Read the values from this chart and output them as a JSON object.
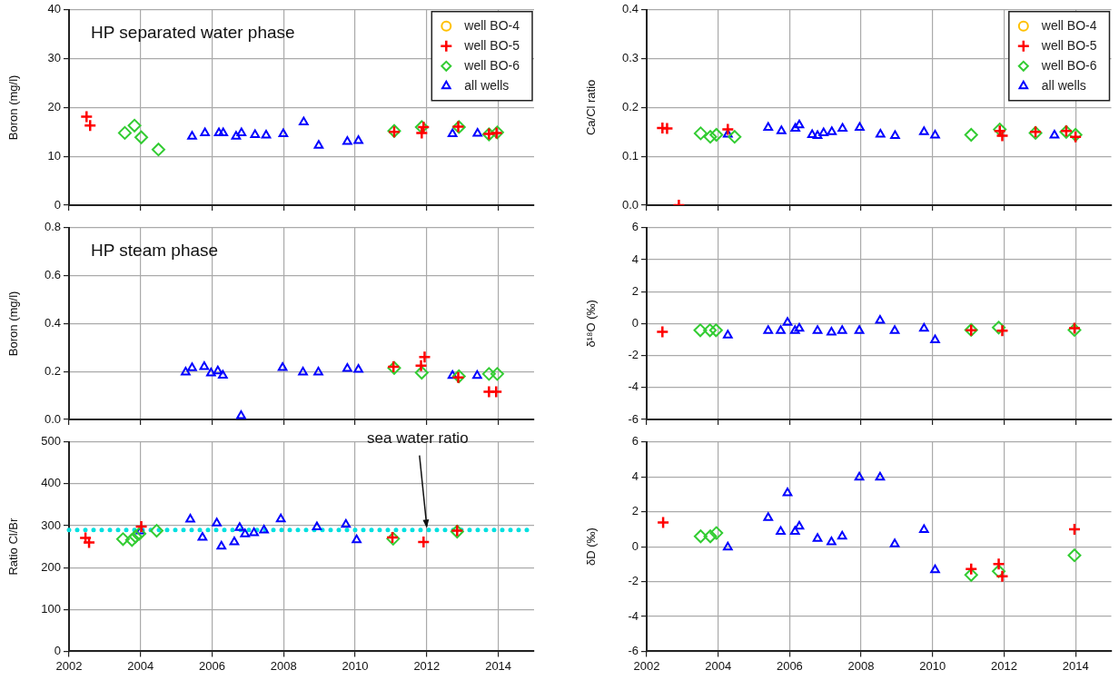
{
  "chart_data": [
    {
      "type": "scatter",
      "title": "HP separated water phase",
      "ylabel": "Boron (mg/l)",
      "xlim": [
        2002,
        2015
      ],
      "xticks": [
        2002,
        2004,
        2006,
        2008,
        2010,
        2012,
        2014
      ],
      "ylim": [
        0,
        40
      ],
      "yticks": [
        0,
        10,
        20,
        30,
        40
      ],
      "grid": true,
      "legend": "top right",
      "tick_labels": "y",
      "series": [
        {
          "name": "well BO-4",
          "color": "#ffc000",
          "marker": "circle"
        },
        {
          "name": "well BO-5",
          "color": "#ff0000",
          "marker": "cross",
          "x": [
            2002.49,
            2002.59,
            2011.09,
            2011.86,
            2011.91,
            2012.88,
            2013.74,
            2013.95
          ],
          "values": [
            18.1,
            16.3,
            15.0,
            14.8,
            16.0,
            16.1,
            14.6,
            14.8
          ]
        },
        {
          "name": "well BO-6",
          "color": "#33cc33",
          "marker": "diamond",
          "x": [
            2003.56,
            2003.83,
            2004.02,
            2004.5,
            2011.09,
            2011.86,
            2012.9,
            2013.74,
            2013.97
          ],
          "values": [
            14.8,
            16.3,
            13.9,
            11.4,
            15.2,
            16.0,
            16.0,
            14.5,
            14.9
          ]
        },
        {
          "name": "all wells",
          "color": "#0000ff",
          "marker": "triangle",
          "x": [
            2005.44,
            2005.8,
            2006.19,
            2006.31,
            2006.67,
            2006.82,
            2007.2,
            2007.51,
            2007.99,
            2008.56,
            2008.98,
            2009.78,
            2010.09,
            2012.72,
            2013.42
          ],
          "values": [
            14.1,
            14.8,
            14.8,
            14.8,
            14.1,
            14.8,
            14.4,
            14.3,
            14.6,
            17.0,
            12.2,
            13.0,
            13.2,
            14.6,
            14.7
          ]
        }
      ]
    },
    {
      "type": "scatter",
      "title": "HP steam phase",
      "ylabel": "Boron (mg/l)",
      "xlim": [
        2002,
        2015
      ],
      "xticks": [
        2002,
        2004,
        2006,
        2008,
        2010,
        2012,
        2014
      ],
      "ylim": [
        0,
        0.8
      ],
      "yticks": [
        {
          "value": 0,
          "label": "0.0"
        },
        0.2,
        0.4,
        0.6,
        0.8
      ],
      "grid": true,
      "tick_labels": "y",
      "series": [
        {
          "color": "#ff0000",
          "marker": "cross",
          "x": [
            2011.07,
            2011.84,
            2011.94,
            2012.88,
            2013.74,
            2013.94
          ],
          "values": [
            0.22,
            0.224,
            0.26,
            0.175,
            0.116,
            0.116
          ]
        },
        {
          "color": "#33cc33",
          "marker": "diamond",
          "x": [
            2011.09,
            2011.86,
            2012.9,
            2013.74,
            2013.97
          ],
          "values": [
            0.215,
            0.195,
            0.18,
            0.19,
            0.19
          ]
        },
        {
          "color": "#0000ff",
          "marker": "triangle",
          "x": [
            2005.26,
            2005.44,
            2005.78,
            2005.97,
            2006.16,
            2006.3,
            2006.81,
            2007.97,
            2008.54,
            2008.97,
            2009.78,
            2010.09,
            2012.72,
            2013.41
          ],
          "values": [
            0.197,
            0.215,
            0.22,
            0.193,
            0.202,
            0.184,
            0.015,
            0.216,
            0.197,
            0.197,
            0.212,
            0.208,
            0.183,
            0.183
          ]
        }
      ]
    },
    {
      "type": "scatter",
      "ylabel": "Ratio Cl/Br",
      "xlim": [
        2002,
        2015
      ],
      "xticks": [
        2002,
        2004,
        2006,
        2008,
        2010,
        2012,
        2014
      ],
      "ylim": [
        0,
        500
      ],
      "yticks": [
        0,
        100,
        200,
        300,
        400,
        500
      ],
      "grid": true,
      "ref_lines": [
        {
          "axis": "y",
          "value": 290,
          "color": "#00e0e0",
          "line_style": "dotted"
        }
      ],
      "annotations": [
        {
          "text": "sea water ratio",
          "x": 2012,
          "y": 290
        }
      ],
      "series": [
        {
          "color": "#ff0000",
          "marker": "cross",
          "x": [
            2002.46,
            2002.56,
            2004.02,
            2011.04,
            2011.91,
            2012.85
          ],
          "values": [
            271,
            260,
            298,
            272,
            261,
            288
          ]
        },
        {
          "color": "#33cc33",
          "marker": "diamond",
          "x": [
            2003.51,
            2003.76,
            2003.86,
            2003.97,
            2004.45,
            2011.06,
            2012.85
          ],
          "values": [
            268,
            266,
            274,
            281,
            288,
            269,
            286
          ]
        },
        {
          "color": "#0000ff",
          "marker": "triangle",
          "x": [
            2004.0,
            2005.39,
            2005.73,
            2006.13,
            2006.26,
            2006.62,
            2006.77,
            2006.92,
            2007.17,
            2007.45,
            2007.92,
            2008.93,
            2009.74,
            2010.04
          ],
          "values": [
            287,
            315,
            272,
            306,
            251,
            261,
            295,
            280,
            283,
            289,
            316,
            297,
            303,
            266
          ]
        }
      ]
    },
    {
      "type": "scatter",
      "ylabel": "Ca/Cl ratio",
      "xlim": [
        2002,
        2015
      ],
      "xticks": [
        2002,
        2004,
        2006,
        2008,
        2010,
        2012,
        2014
      ],
      "ylim": [
        0,
        0.4
      ],
      "yticks": [
        {
          "value": 0,
          "label": "0.0"
        },
        0.1,
        0.2,
        0.3,
        0.4
      ],
      "grid": true,
      "legend": "top right",
      "tick_labels": "y",
      "series": [
        {
          "name": "well BO-4",
          "color": "#ffc000",
          "marker": "circle"
        },
        {
          "name": "well BO-5",
          "color": "#ff0000",
          "marker": "cross",
          "x": [
            2002.44,
            2002.57,
            2002.9,
            2004.27,
            2011.88,
            2011.95,
            2012.88,
            2013.74,
            2014.0
          ],
          "values": [
            0.158,
            0.157,
            0.0,
            0.155,
            0.152,
            0.142,
            0.15,
            0.152,
            0.14
          ]
        },
        {
          "name": "well BO-6",
          "color": "#33cc33",
          "marker": "diamond",
          "x": [
            2003.51,
            2003.78,
            2003.95,
            2004.46,
            2011.08,
            2011.88,
            2012.88,
            2013.74,
            2014.0
          ],
          "values": [
            0.147,
            0.14,
            0.144,
            0.14,
            0.144,
            0.155,
            0.148,
            0.15,
            0.144
          ]
        },
        {
          "name": "all wells",
          "color": "#0000ff",
          "marker": "triangle",
          "x": [
            2004.27,
            2005.4,
            2005.77,
            2006.16,
            2006.27,
            2006.63,
            2006.78,
            2006.95,
            2007.18,
            2007.48,
            2007.96,
            2008.54,
            2008.95,
            2009.76,
            2010.07,
            2013.41
          ],
          "values": [
            0.145,
            0.159,
            0.152,
            0.157,
            0.164,
            0.144,
            0.142,
            0.148,
            0.15,
            0.157,
            0.159,
            0.145,
            0.142,
            0.15,
            0.143,
            0.143
          ]
        }
      ]
    },
    {
      "type": "scatter",
      "ylabel": "δ¹⁸O (‰)",
      "xlim": [
        2002,
        2015
      ],
      "xticks": [
        2002,
        2004,
        2006,
        2008,
        2010,
        2012,
        2014
      ],
      "ylim": [
        -6,
        6
      ],
      "yticks": [
        -6,
        -4,
        -2,
        0,
        2,
        4,
        6
      ],
      "grid": true,
      "tick_labels": "y",
      "series": [
        {
          "color": "#ff0000",
          "marker": "cross",
          "x": [
            2002.44,
            2011.08,
            2011.95,
            2013.97
          ],
          "values": [
            -0.52,
            -0.42,
            -0.44,
            -0.29
          ]
        },
        {
          "color": "#33cc33",
          "marker": "diamond",
          "x": [
            2003.5,
            2003.77,
            2003.94,
            2011.08,
            2011.85,
            2013.97
          ],
          "values": [
            -0.42,
            -0.42,
            -0.42,
            -0.4,
            -0.25,
            -0.4
          ]
        },
        {
          "color": "#0000ff",
          "marker": "triangle",
          "x": [
            2004.27,
            2005.4,
            2005.75,
            2005.94,
            2006.15,
            2006.27,
            2006.78,
            2007.17,
            2007.47,
            2007.95,
            2008.53,
            2008.94,
            2009.76,
            2010.07
          ],
          "values": [
            -0.73,
            -0.44,
            -0.44,
            0.06,
            -0.44,
            -0.31,
            -0.44,
            -0.55,
            -0.44,
            -0.44,
            0.19,
            -0.44,
            -0.31,
            -1.03
          ]
        }
      ]
    },
    {
      "type": "scatter",
      "ylabel": "δD (‰)",
      "xlim": [
        2002,
        2015
      ],
      "xticks": [
        2002,
        2004,
        2006,
        2008,
        2010,
        2012,
        2014
      ],
      "ylim": [
        -6,
        6
      ],
      "yticks": [
        -6,
        -4,
        -2,
        0,
        2,
        4,
        6
      ],
      "grid": true,
      "series": [
        {
          "color": "#ff0000",
          "marker": "cross",
          "x": [
            2002.46,
            2011.08,
            2011.85,
            2011.95,
            2013.97
          ],
          "values": [
            1.39,
            -1.28,
            -0.99,
            -1.7,
            1.0
          ]
        },
        {
          "color": "#33cc33",
          "marker": "diamond",
          "x": [
            2003.51,
            2003.78,
            2003.95,
            2011.08,
            2011.85,
            2013.97
          ],
          "values": [
            0.59,
            0.59,
            0.78,
            -1.62,
            -1.41,
            -0.5
          ]
        },
        {
          "color": "#0000ff",
          "marker": "triangle",
          "x": [
            2004.27,
            2005.4,
            2005.75,
            2005.94,
            2006.15,
            2006.27,
            2006.78,
            2007.17,
            2007.47,
            2007.95,
            2008.53,
            2008.94,
            2009.76,
            2010.07
          ],
          "values": [
            -0.04,
            1.66,
            0.86,
            3.07,
            0.86,
            1.16,
            0.46,
            0.27,
            0.59,
            3.97,
            3.97,
            0.15,
            0.97,
            -1.34
          ]
        }
      ]
    }
  ]
}
